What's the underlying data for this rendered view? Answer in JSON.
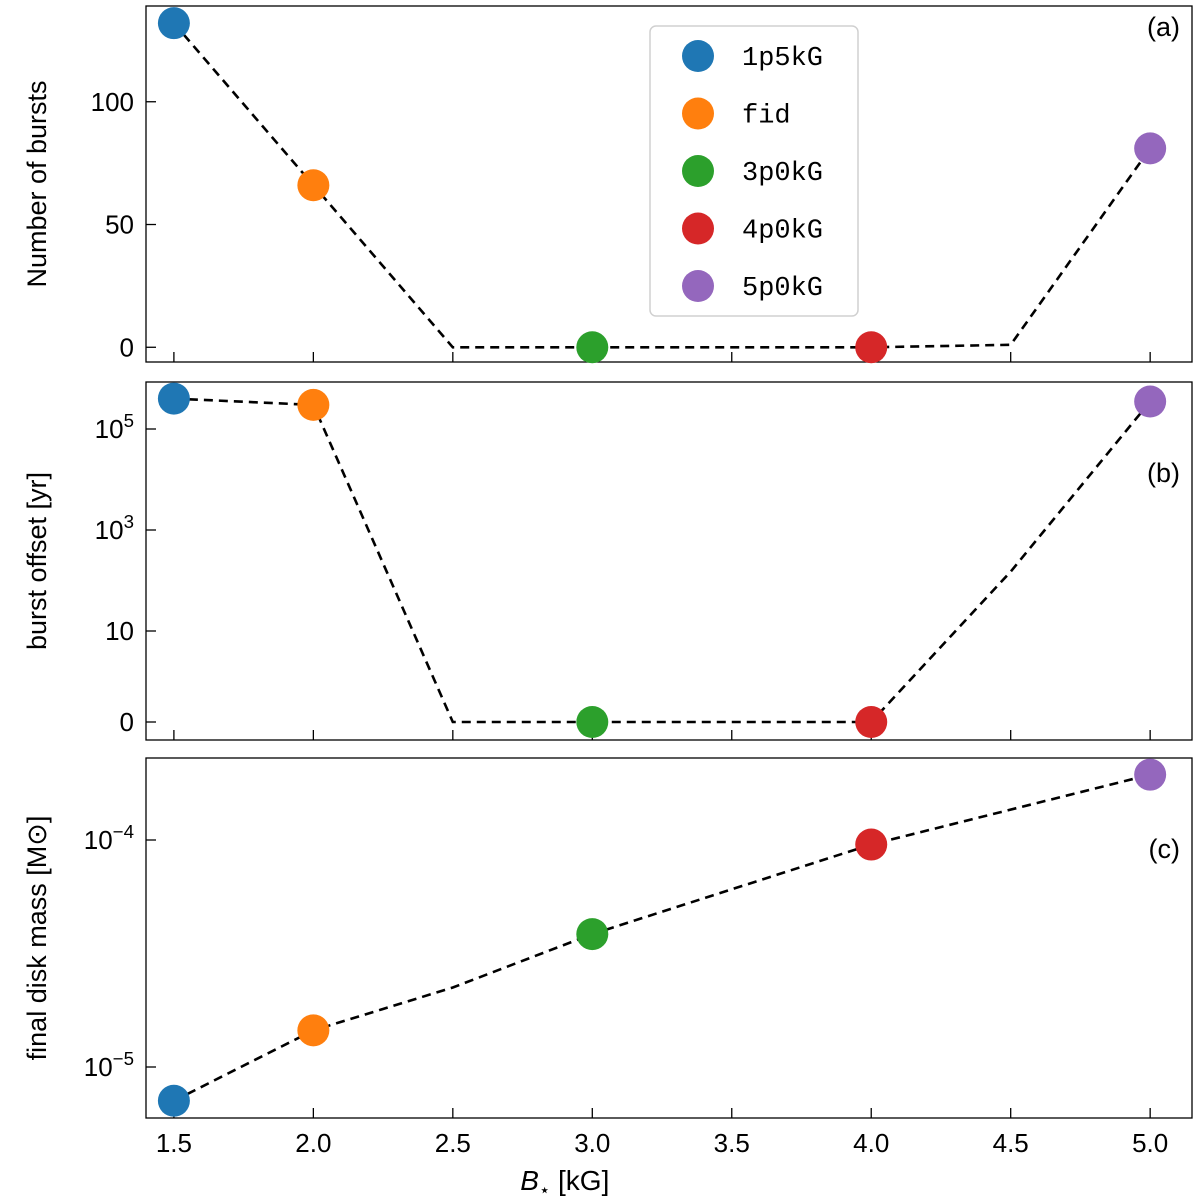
{
  "chart_data": {
    "type": "scatter",
    "shared_xlabel": "B⋆ [kG]",
    "x_ticks": [
      "1.5",
      "2.0",
      "2.5",
      "3.0",
      "3.5",
      "4.0",
      "4.5",
      "5.0"
    ],
    "series": [
      {
        "name": "1p5kG",
        "color": "#1f77b4",
        "x": 1.5
      },
      {
        "name": "fid",
        "color": "#ff7f0e",
        "x": 2.0
      },
      {
        "name": "3p0kG",
        "color": "#2ca02c",
        "x": 3.0
      },
      {
        "name": "4p0kG",
        "color": "#d62728",
        "x": 4.0
      },
      {
        "name": "5p0kG",
        "color": "#9467bd",
        "x": 5.0
      }
    ],
    "legend_position": "top-center of panel (a)",
    "panels": [
      {
        "panel_label": "(a)",
        "ylabel": "Number of bursts",
        "yscale": "linear",
        "ylim": [
          -6,
          139
        ],
        "y_ticks": [
          "0",
          "50",
          "100"
        ],
        "points": [
          [
            1.5,
            132
          ],
          [
            2.0,
            66
          ],
          [
            3.0,
            0
          ],
          [
            4.0,
            0
          ],
          [
            5.0,
            81
          ]
        ],
        "dashed_line": [
          [
            1.5,
            132
          ],
          [
            2.0,
            66
          ],
          [
            2.5,
            0
          ],
          [
            3.0,
            0
          ],
          [
            4.0,
            0
          ],
          [
            4.5,
            1
          ],
          [
            5.0,
            81
          ]
        ]
      },
      {
        "panel_label": "(b)",
        "ylabel": "burst offset [yr]",
        "yscale": "symlog",
        "y_ticks": [
          "0",
          "10",
          "10^3",
          "10^5"
        ],
        "points": [
          [
            1.5,
            400000
          ],
          [
            2.0,
            300000
          ],
          [
            3.0,
            0
          ],
          [
            4.0,
            0
          ],
          [
            5.0,
            350000
          ]
        ],
        "dashed_line": [
          [
            1.5,
            400000
          ],
          [
            2.0,
            300000
          ],
          [
            2.5,
            0
          ],
          [
            3.0,
            0
          ],
          [
            4.0,
            0
          ],
          [
            4.5,
            150
          ],
          [
            5.0,
            350000
          ]
        ]
      },
      {
        "panel_label": "(c)",
        "ylabel": "final disk mass [M⊙]",
        "yscale": "log",
        "y_ticks": [
          "10^-5",
          "10^-4"
        ],
        "points": [
          [
            1.5,
            7.1e-06
          ],
          [
            2.0,
            1.45e-05
          ],
          [
            3.0,
            3.85e-05
          ],
          [
            4.0,
            9.55e-05
          ],
          [
            5.0,
            0.000194
          ]
        ],
        "dashed_line": [
          [
            1.5,
            7.1e-06
          ],
          [
            2.0,
            1.45e-05
          ],
          [
            2.5,
            2.24e-05
          ],
          [
            3.0,
            3.85e-05
          ],
          [
            4.0,
            9.55e-05
          ],
          [
            5.0,
            0.000194
          ]
        ]
      }
    ]
  }
}
